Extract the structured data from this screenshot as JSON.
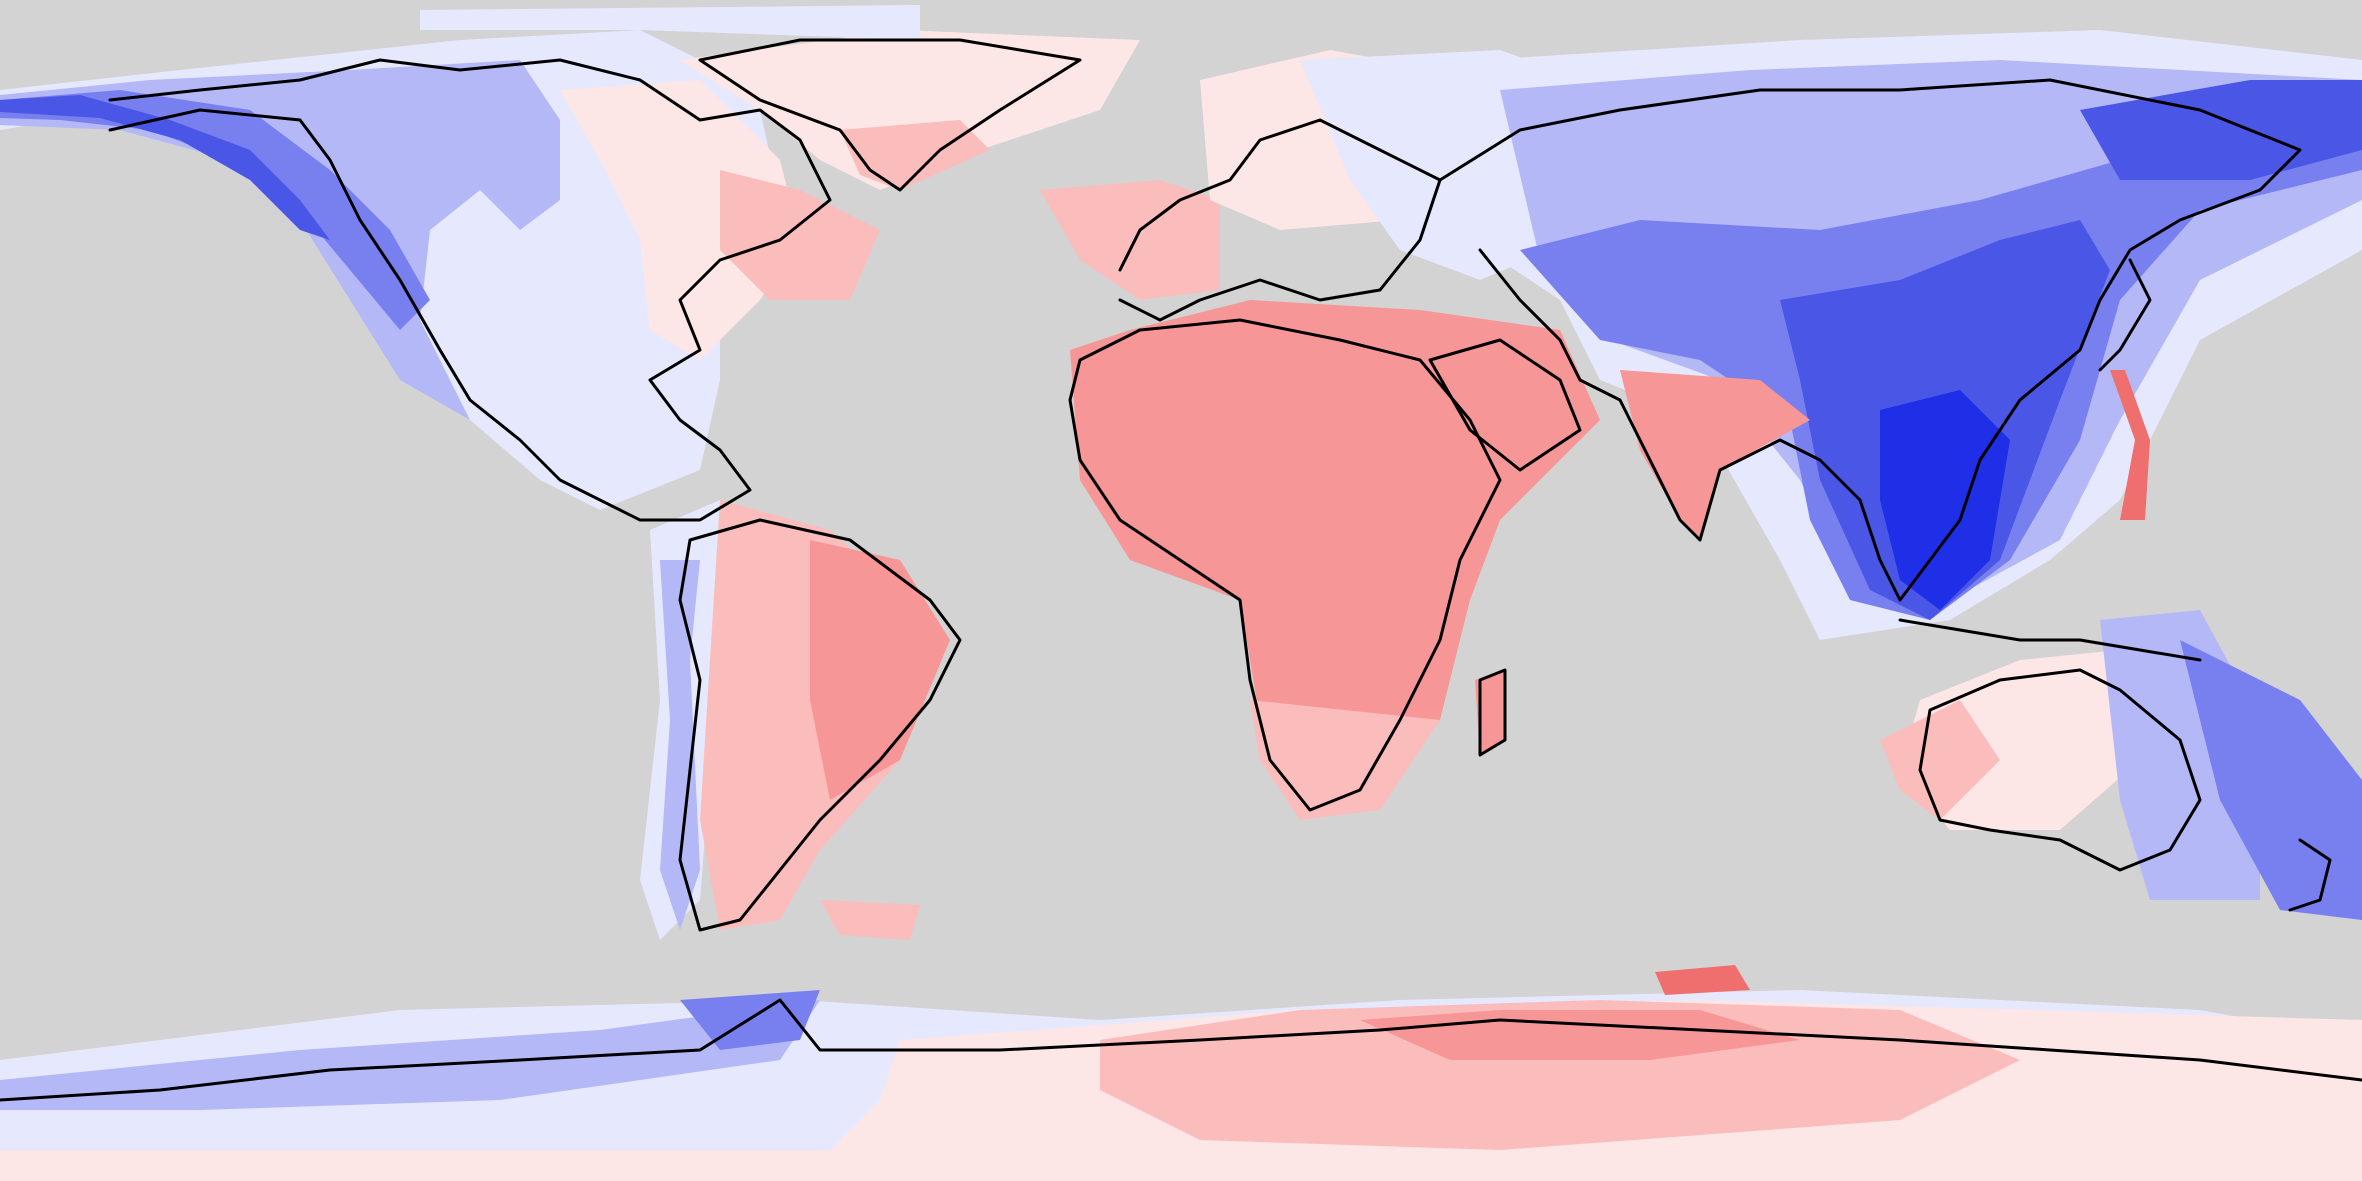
{
  "map": {
    "projection": "equirectangular",
    "extent": {
      "lon": [
        -180,
        180
      ],
      "lat": [
        -90,
        90
      ]
    },
    "background_color": "#d3d3d3",
    "coastline_color": "#000000",
    "labels_shown": false
  },
  "legend": {
    "colors": {
      "blue_strong": "#1f2fe8",
      "blue_dark": "#4a56e6",
      "blue_mid": "#7880f0",
      "blue_light": "#b4b8f6",
      "blue_pale": "#e6e8fd",
      "red_pale": "#fde6e6",
      "red_light": "#fbbcbc",
      "red_mid": "#f79696",
      "red_strong": "#ef6f6f"
    }
  }
}
